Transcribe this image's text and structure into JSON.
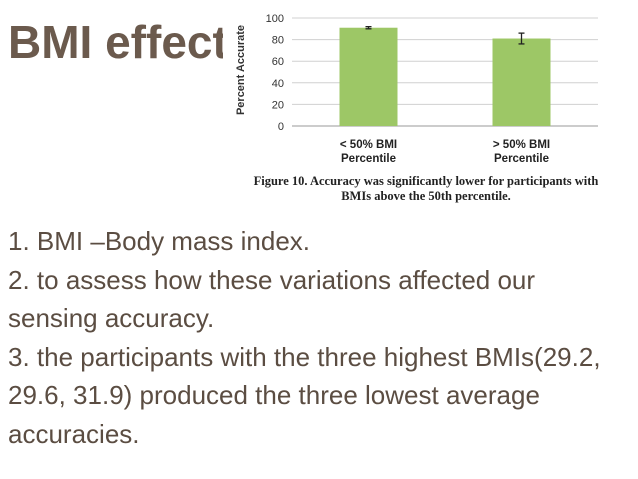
{
  "slide": {
    "title": "BMI effect",
    "bullets": [
      "1.  BMI –Body mass index.",
      "2.  to assess how these variations affected our sensing accuracy.",
      "3.   the participants with the three highest BMIs(29.2, 29.6, 31.9) produced the three lowest average accuracies."
    ],
    "colors": {
      "title": "#6b5a4d",
      "body": "#5b4d42",
      "bar": "#9dc766"
    }
  },
  "figure": {
    "caption": "Figure 10. Accuracy was significantly lower for participants with BMIs above the 50th percentile."
  },
  "chart_data": {
    "type": "bar",
    "categories": [
      "< 50% BMI Percentile",
      "> 50% BMI Percentile"
    ],
    "category_lines": [
      [
        "< 50% BMI",
        "Percentile"
      ],
      [
        "> 50% BMI",
        "Percentile"
      ]
    ],
    "values": [
      91,
      81
    ],
    "error": [
      1,
      5
    ],
    "ylabel": "Percent Accurate",
    "ylim": [
      0,
      100
    ],
    "yticks": [
      0,
      20,
      40,
      60,
      80,
      100
    ],
    "grid": true
  }
}
